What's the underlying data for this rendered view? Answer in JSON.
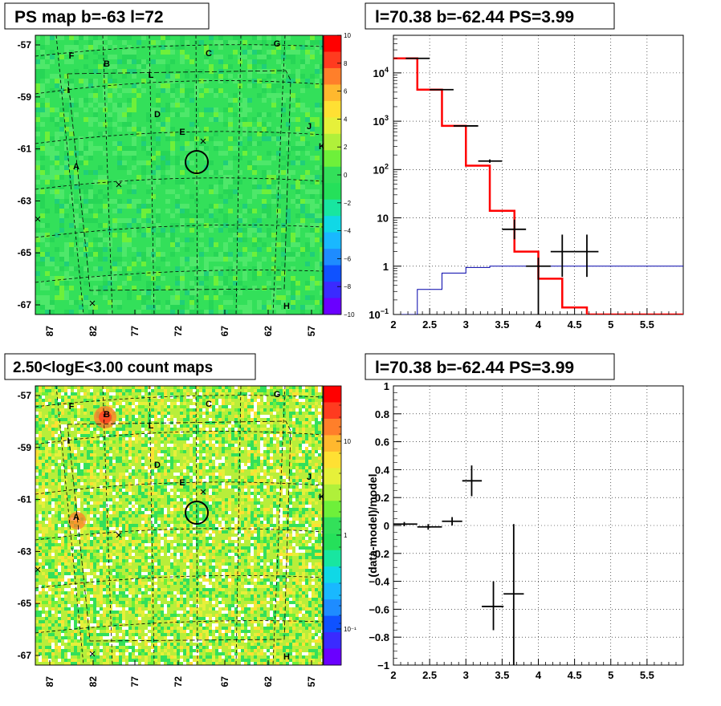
{
  "colors": {
    "map_bg": "#33e05a",
    "map2_bg": "#b8ee3a",
    "model": "#ff0000",
    "data": "#000000",
    "exposure": "#0000aa",
    "palette": [
      "#6a00ff",
      "#3a2bff",
      "#0f52ff",
      "#1e8cff",
      "#19b8ff",
      "#10d8e6",
      "#18e6a0",
      "#25e05a",
      "#33e05a",
      "#6ef03a",
      "#b0f03a",
      "#e6f03a",
      "#ffe033",
      "#ffb82e",
      "#ff7f2a",
      "#ff3b1f",
      "#ff0000"
    ]
  },
  "panels": {
    "top_left": {
      "title": "PS map b=-63 l=72"
    },
    "top_right": {
      "title": "l=70.38 b=-62.44 PS=3.99"
    },
    "bottom_left": {
      "title": "2.50<logE<3.00 count maps"
    },
    "bottom_right": {
      "title": "l=70.38 b=-62.44 PS=3.99"
    }
  },
  "chart_data": [
    {
      "type": "heatmap",
      "title": "PS map b=-63 l=72",
      "y_ticks": [
        "-57",
        "-59",
        "-61",
        "-63",
        "-65",
        "-67"
      ],
      "x_ticks": [
        "87",
        "82",
        "77",
        "72",
        "67",
        "62",
        "57"
      ],
      "colorbar_ticks": [
        "10",
        "8",
        "6",
        "4",
        "2",
        "0",
        "−2",
        "−4",
        "−6",
        "−8",
        "−10"
      ],
      "colorbar_range": [
        -10,
        10
      ],
      "source_labels": [
        "F",
        "B",
        "L",
        "C",
        "G",
        "I",
        "D",
        "E",
        "J",
        "K",
        "A",
        "H"
      ]
    },
    {
      "type": "line",
      "title": "l=70.38 b=-62.44 PS=3.99",
      "y_scale": "log",
      "xlim": [
        2,
        6
      ],
      "ylim": [
        0.1,
        60000
      ],
      "x_ticks": [
        "2",
        "2.5",
        "3",
        "3.5",
        "4",
        "4.5",
        "5",
        "5.5"
      ],
      "y_ticks": [
        {
          "base": "10",
          "exp": "4"
        },
        {
          "base": "10",
          "exp": "3"
        },
        {
          "base": "10",
          "exp": "2"
        },
        {
          "base": "10",
          "exp": ""
        },
        {
          "base": "1",
          "exp": ""
        },
        {
          "base": "10",
          "exp": "−1"
        }
      ],
      "series": [
        {
          "kind": "step",
          "color": "#ff0000",
          "edges": [
            2.0,
            2.33,
            2.67,
            3.0,
            3.33,
            3.67,
            4.0,
            4.33,
            4.67,
            6.0
          ],
          "values": [
            20000,
            4500,
            800,
            120,
            14,
            2,
            0.55,
            0.14,
            0.1
          ]
        },
        {
          "kind": "step",
          "color": "#0000aa",
          "edges": [
            2.0,
            2.33,
            2.67,
            3.0,
            3.33,
            3.67,
            4.0,
            6.0
          ],
          "values": [
            0.1,
            0.33,
            0.72,
            0.94,
            1.0,
            1.0,
            1.0
          ]
        },
        {
          "kind": "points",
          "color": "#000000",
          "points": [
            {
              "x": 2.33,
              "y": 20000,
              "xl": 2.17,
              "xr": 2.5,
              "yl": 19700,
              "yh": 20300
            },
            {
              "x": 2.67,
              "y": 4500,
              "xl": 2.5,
              "xr": 2.83,
              "yl": 4400,
              "yh": 4600
            },
            {
              "x": 3.0,
              "y": 800,
              "xl": 2.83,
              "xr": 3.17,
              "yl": 770,
              "yh": 830
            },
            {
              "x": 3.33,
              "y": 150,
              "xl": 3.17,
              "xr": 3.5,
              "yl": 138,
              "yh": 162
            },
            {
              "x": 3.67,
              "y": 5.8,
              "xl": 3.5,
              "xr": 3.83,
              "yl": 3.6,
              "yh": 9.2
            },
            {
              "x": 4.0,
              "y": 1.0,
              "xl": 3.83,
              "xr": 4.17,
              "yl": 0.1,
              "yh": 1.5
            },
            {
              "x": 4.33,
              "y": 2.0,
              "xl": 4.17,
              "xr": 4.5,
              "yl": 0.6,
              "yh": 4.5
            },
            {
              "x": 4.67,
              "y": 2.0,
              "xl": 4.5,
              "xr": 4.83,
              "yl": 0.6,
              "yh": 4.5
            }
          ]
        }
      ]
    },
    {
      "type": "heatmap",
      "title": "2.50<logE<3.00 count maps",
      "y_ticks": [
        "-57",
        "-59",
        "-61",
        "-63",
        "-65",
        "-67"
      ],
      "x_ticks": [
        "87",
        "82",
        "77",
        "72",
        "67",
        "62",
        "57"
      ],
      "colorbar_ticks": [
        "10",
        "1",
        "10⁻¹"
      ],
      "source_labels": [
        "F",
        "B",
        "L",
        "C",
        "G",
        "I",
        "D",
        "E",
        "J",
        "K",
        "A",
        "H"
      ]
    },
    {
      "type": "scatter",
      "title": "l=70.38 b=-62.44 PS=3.99",
      "ylabel": "(data-model)/model",
      "xlim": [
        2,
        6
      ],
      "ylim": [
        -1,
        1
      ],
      "x_ticks": [
        "2",
        "2.5",
        "3",
        "3.5",
        "4",
        "4.5",
        "5",
        "5.5"
      ],
      "y_ticks": [
        "1",
        "0.8",
        "0.6",
        "0.4",
        "0.2",
        "0",
        "−0.2",
        "−0.4",
        "−0.6",
        "−0.8",
        "−1"
      ],
      "points": [
        {
          "x": 2.15,
          "y": 0.01,
          "xl": 2.0,
          "xr": 2.33,
          "yl": -0.005,
          "yh": 0.025
        },
        {
          "x": 2.48,
          "y": -0.01,
          "xl": 2.33,
          "xr": 2.67,
          "yl": -0.03,
          "yh": 0.01
        },
        {
          "x": 2.81,
          "y": 0.03,
          "xl": 2.67,
          "xr": 2.95,
          "yl": 0.0,
          "yh": 0.06
        },
        {
          "x": 3.08,
          "y": 0.32,
          "xl": 2.95,
          "xr": 3.22,
          "yl": 0.21,
          "yh": 0.43
        },
        {
          "x": 3.38,
          "y": -0.58,
          "xl": 3.22,
          "xr": 3.52,
          "yl": -0.75,
          "yh": -0.4
        },
        {
          "x": 3.66,
          "y": -0.49,
          "xl": 3.52,
          "xr": 3.8,
          "yl": -1.0,
          "yh": 0.01
        }
      ]
    }
  ]
}
